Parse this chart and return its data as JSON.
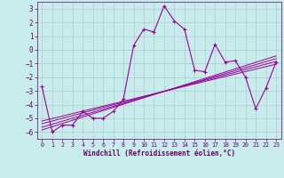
{
  "xlabel": "Windchill (Refroidissement éolien,°C)",
  "hours": [
    0,
    1,
    2,
    3,
    4,
    5,
    6,
    7,
    8,
    9,
    10,
    11,
    12,
    13,
    14,
    15,
    16,
    17,
    18,
    19,
    20,
    21,
    22,
    23
  ],
  "values": [
    -2.7,
    -6.0,
    -5.5,
    -5.5,
    -4.5,
    -5.0,
    -5.0,
    -4.5,
    -3.6,
    0.3,
    1.5,
    1.3,
    3.2,
    2.1,
    1.5,
    -1.5,
    -1.6,
    0.4,
    -0.9,
    -0.8,
    -2.0,
    -4.3,
    -2.8,
    -0.9
  ],
  "line_color": "#990099",
  "bg_color": "#c8ecec",
  "grid_color": "#aacccc",
  "xlabel_color": "#660066",
  "tick_color": "#660066",
  "ylim": [
    -6.5,
    3.5
  ],
  "xlim": [
    -0.5,
    23.5
  ],
  "yticks": [
    3,
    2,
    1,
    0,
    -1,
    -2,
    -3,
    -4,
    -5,
    -6
  ],
  "xticks": [
    0,
    1,
    2,
    3,
    4,
    5,
    6,
    7,
    8,
    9,
    10,
    11,
    12,
    13,
    14,
    15,
    16,
    17,
    18,
    19,
    20,
    21,
    22,
    23
  ],
  "regression_lines": [
    {
      "x0": 0,
      "y0": -5.4,
      "x1": 23,
      "y1": -0.85
    },
    {
      "x0": 0,
      "y0": -5.65,
      "x1": 23,
      "y1": -0.65
    },
    {
      "x0": 0,
      "y0": -5.85,
      "x1": 23,
      "y1": -0.45
    },
    {
      "x0": 0,
      "y0": -5.2,
      "x1": 23,
      "y1": -1.05
    }
  ]
}
